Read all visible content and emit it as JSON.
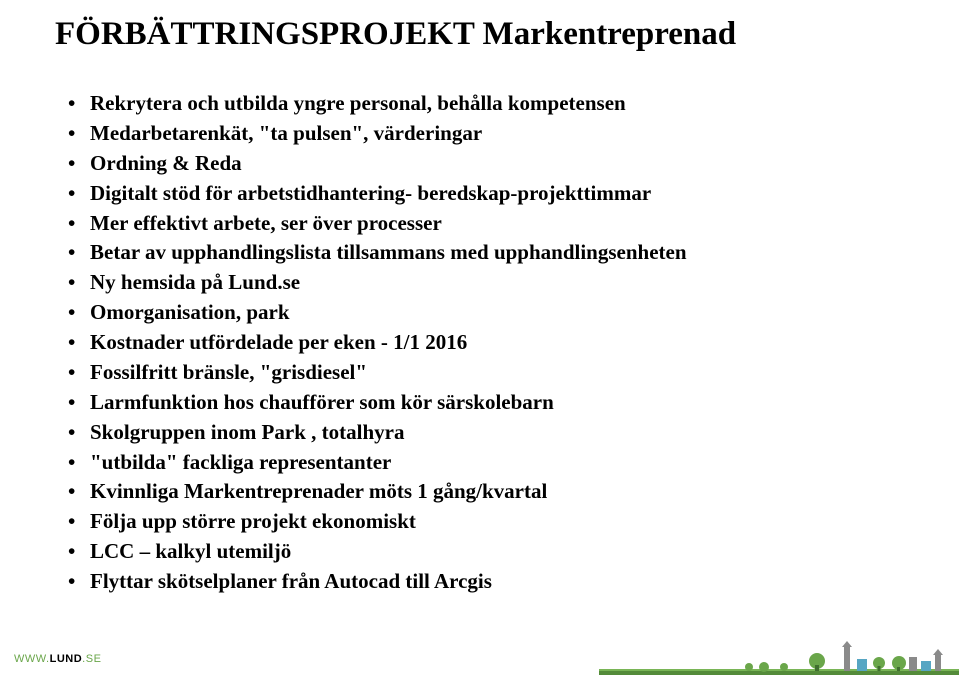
{
  "title": "FÖRBÄTTRINGSPROJEKT Markentreprenad",
  "bullets": [
    "Rekrytera och utbilda yngre personal, behålla kompetensen",
    "Medarbetarenkät, \"ta pulsen\", värderingar",
    "Ordning & Reda",
    "Digitalt stöd för arbetstidhantering- beredskap-projekttimmar",
    "Mer effektivt arbete, ser över processer",
    "Betar av upphandlingslista tillsammans med upphandlingsenheten",
    "Ny hemsida på Lund.se",
    "Omorganisation, park",
    "Kostnader utfördelade per eken  - 1/1 2016",
    "Fossilfritt bränsle, \"grisdiesel\"",
    "Larmfunktion hos chaufförer som kör särskolebarn",
    "Skolgruppen inom Park , totalhyra",
    "\"utbilda\" fackliga representanter",
    "Kvinnliga Markentreprenader möts 1 gång/kvartal",
    "Följa upp större projekt ekonomiskt",
    "LCC – kalkyl utemiljö",
    "Flyttar skötselplaner från Autocad till Arcgis"
  ],
  "logo": {
    "www": "WWW.",
    "lund": "LUND",
    "se": ".SE"
  },
  "skyline": {
    "ground_color": "#548b3a",
    "ground_top": "#79b556",
    "accent_blue": "#57a6c3",
    "accent_green": "#6aa64a",
    "accent_dark": "#3f6f2e",
    "accent_grey": "#8a8a8a"
  },
  "colors": {
    "text": "#000000",
    "background": "#ffffff"
  }
}
